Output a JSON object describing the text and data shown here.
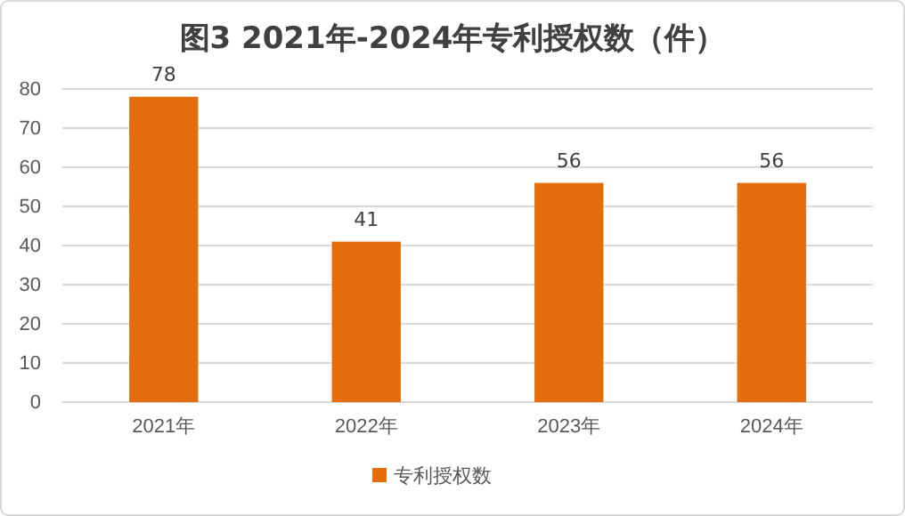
{
  "chart_data": {
    "type": "bar",
    "title": "图3  2021年-2024年专利授权数（件）",
    "categories": [
      "2021年",
      "2022年",
      "2023年",
      "2024年"
    ],
    "series": [
      {
        "name": "专利授权数",
        "color": "#e46c0a",
        "values": [
          78,
          41,
          56,
          56
        ]
      }
    ],
    "ylim": [
      0,
      80
    ],
    "yticks": [
      0,
      10,
      20,
      30,
      40,
      50,
      60,
      70,
      80
    ],
    "grid": "y",
    "legend": "bottom",
    "data_labels": true
  }
}
